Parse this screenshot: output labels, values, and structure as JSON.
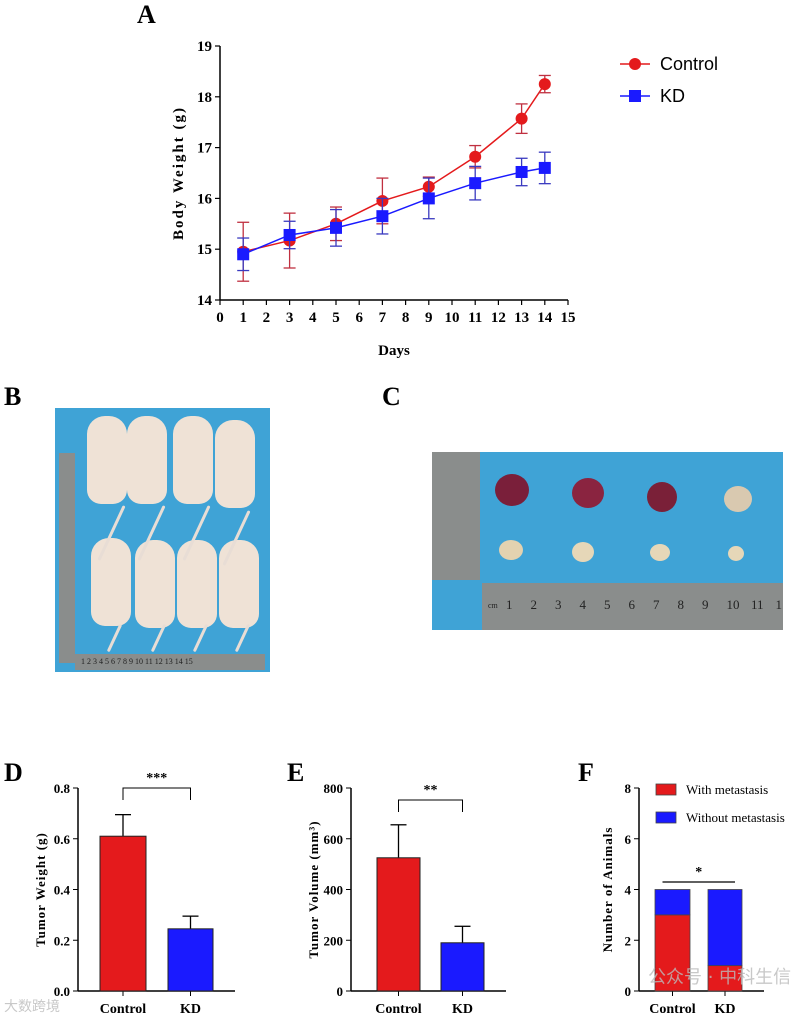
{
  "panels": {
    "a": "A",
    "b": "B",
    "c": "C",
    "d": "D",
    "e": "E",
    "f": "F"
  },
  "photos": {
    "b_ruler_marks": "1 2 3 4 5 6 7 8 9 10 11 12 13 14 15",
    "c_ruler_unit": "cm",
    "c_ruler_marks": [
      "1",
      "2",
      "3",
      "4",
      "5",
      "6",
      "7",
      "8",
      "9",
      "10",
      "11",
      "1"
    ]
  },
  "watermarks": {
    "left": "大数跨境",
    "right": "公众号 · 中科生信"
  },
  "colors": {
    "control": "#e41a1c",
    "kd": "#1a1aff",
    "photo_bg": "#3fa3d6"
  },
  "chart_data": [
    {
      "id": "A",
      "type": "line",
      "xlabel": "Days",
      "ylabel": "Body Weight (g)",
      "xlim": [
        0,
        15
      ],
      "ylim": [
        14,
        19
      ],
      "xticks": [
        "0",
        "1",
        "2",
        "3",
        "4",
        "5",
        "6",
        "7",
        "8",
        "9",
        "10",
        "11",
        "12",
        "13",
        "14",
        "15"
      ],
      "yticks": [
        "14",
        "15",
        "16",
        "17",
        "18",
        "19"
      ],
      "legend_position": "top-right",
      "x": [
        1,
        3,
        5,
        7,
        9,
        11,
        13,
        14
      ],
      "series": [
        {
          "name": "Control",
          "marker": "circle",
          "values": [
            14.95,
            15.17,
            15.5,
            15.95,
            16.23,
            16.82,
            17.57,
            18.25
          ],
          "errors": [
            0.58,
            0.54,
            0.33,
            0.45,
            0.19,
            0.22,
            0.29,
            0.17
          ]
        },
        {
          "name": "KD",
          "marker": "square",
          "values": [
            14.9,
            15.28,
            15.42,
            15.65,
            16.0,
            16.3,
            16.52,
            16.6
          ],
          "errors": [
            0.32,
            0.27,
            0.36,
            0.35,
            0.4,
            0.33,
            0.27,
            0.31
          ]
        }
      ]
    },
    {
      "id": "D",
      "type": "bar",
      "ylabel": "Tumor Weight (g)",
      "ylim": [
        0,
        0.8
      ],
      "yticks": [
        "0.0",
        "0.2",
        "0.4",
        "0.6",
        "0.8"
      ],
      "categories": [
        "Control",
        "KD"
      ],
      "values": [
        0.61,
        0.245
      ],
      "errors": [
        0.085,
        0.05
      ],
      "significance": "***"
    },
    {
      "id": "E",
      "type": "bar",
      "ylabel": "Tumor Volume (mm³)",
      "ylim": [
        0,
        800
      ],
      "yticks": [
        "0",
        "200",
        "400",
        "600",
        "800"
      ],
      "categories": [
        "Control",
        "KD"
      ],
      "values": [
        525,
        190
      ],
      "errors": [
        130,
        65
      ],
      "significance": "**"
    },
    {
      "id": "F",
      "type": "bar",
      "stacked": true,
      "ylabel": "Number of Animals",
      "ylim": [
        0,
        8
      ],
      "yticks": [
        "0",
        "2",
        "4",
        "6",
        "8"
      ],
      "categories": [
        "Control",
        "KD"
      ],
      "series": [
        {
          "name": "With metastasis",
          "values": [
            3,
            1
          ]
        },
        {
          "name": "Without metastasis",
          "values": [
            1,
            3
          ]
        }
      ],
      "legend_position": "top-right",
      "significance": "*"
    }
  ]
}
